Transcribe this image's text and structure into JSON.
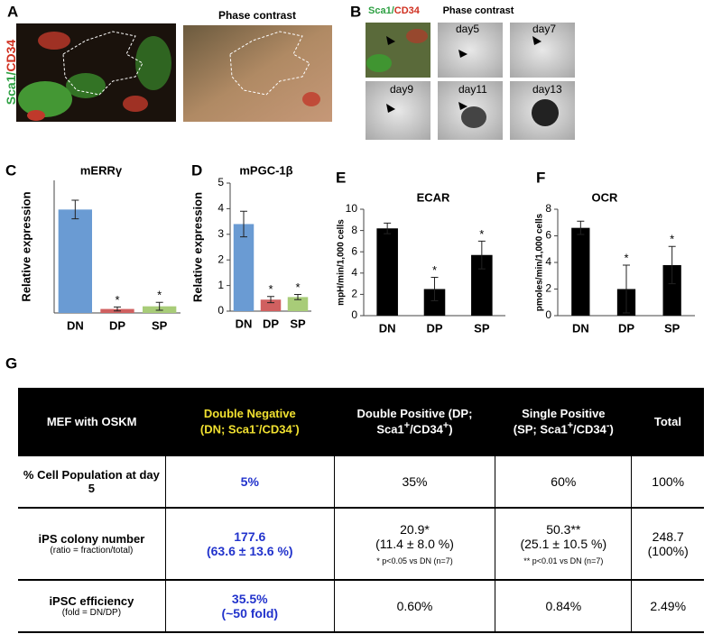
{
  "panel_labels": [
    "A",
    "B",
    "C",
    "D",
    "E",
    "F",
    "G"
  ],
  "panel_a": {
    "stain_label": [
      "Sca1/",
      "CD34"
    ],
    "phase_label": "Phase contrast"
  },
  "panel_b": {
    "stain_label": [
      "Sca1/",
      "CD34"
    ],
    "phase_label": "Phase contrast",
    "days": [
      "day5",
      "day7",
      "day9",
      "day11",
      "day13"
    ]
  },
  "chart_data": [
    {
      "type": "bar",
      "title": "mERRγ",
      "y_label": "Relative expression",
      "categories": [
        "DN",
        "DP",
        "SP"
      ],
      "values": [
        0.78,
        0.03,
        0.05
      ],
      "errors": [
        0.07,
        0.015,
        0.03
      ],
      "colors": [
        "#6a9bd3",
        "#d06060",
        "#a8cc78"
      ],
      "significance": [
        null,
        "*",
        "*"
      ],
      "ylim": [
        0,
        1
      ]
    },
    {
      "type": "bar",
      "title": "mPGC-1β",
      "y_label": "Relative expression",
      "categories": [
        "DN",
        "DP",
        "SP"
      ],
      "values": [
        3.4,
        0.45,
        0.55
      ],
      "errors": [
        0.5,
        0.12,
        0.1
      ],
      "colors": [
        "#6a9bd3",
        "#d06060",
        "#a8cc78"
      ],
      "significance": [
        null,
        "*",
        "*"
      ],
      "ylim": [
        0,
        5
      ],
      "yticks": [
        0,
        1,
        2,
        3,
        4,
        5
      ]
    },
    {
      "type": "bar",
      "title": "ECAR",
      "y_label": "mpH/min/1,000 cells",
      "categories": [
        "DN",
        "DP",
        "SP"
      ],
      "values": [
        8.2,
        2.5,
        5.7
      ],
      "errors": [
        0.5,
        1.1,
        1.3
      ],
      "colors": [
        "#000000",
        "#000000",
        "#000000"
      ],
      "significance": [
        null,
        "*",
        "*"
      ],
      "ylim": [
        0,
        10
      ],
      "yticks": [
        0,
        2,
        4,
        6,
        8,
        10
      ]
    },
    {
      "type": "bar",
      "title": "OCR",
      "y_label": "pmoles/min/1,000 cells",
      "categories": [
        "DN",
        "DP",
        "SP"
      ],
      "values": [
        6.6,
        2.0,
        3.8
      ],
      "errors": [
        0.5,
        1.8,
        1.4
      ],
      "colors": [
        "#000000",
        "#000000",
        "#000000"
      ],
      "significance": [
        null,
        "*",
        "*"
      ],
      "ylim": [
        0,
        8
      ],
      "yticks": [
        0,
        2,
        4,
        6,
        8
      ]
    }
  ],
  "table": {
    "header": [
      [
        [
          "MEF with OSKM"
        ]
      ],
      [
        [
          "Double Negative"
        ],
        [
          "(DN; Sca1",
          "-",
          "/CD34",
          "-",
          ")"
        ]
      ],
      [
        [
          "Double Positive (DP;"
        ],
        [
          "Sca1",
          "+",
          "/CD34",
          "+",
          ")"
        ]
      ],
      [
        [
          "Single Positive"
        ],
        [
          "(SP;  Sca1",
          "+",
          "/CD34",
          "-",
          ")"
        ]
      ],
      [
        [
          "Total"
        ]
      ]
    ],
    "rows": [
      [
        [
          "% Cell Population at day 5"
        ],
        [
          "5%"
        ],
        [
          "35%"
        ],
        [
          "60%"
        ],
        [
          "100%"
        ]
      ],
      [
        [
          "iPS colony number",
          "(ratio = fraction/total)"
        ],
        [
          "177.6",
          "(63.6 ± 13.6 %)"
        ],
        [
          "20.9*",
          "(11.4 ± 8.0 %)",
          "* p<0.05 vs DN (n=7)"
        ],
        [
          "50.3**",
          "(25.1 ± 10.5 %)",
          "** p<0.01 vs DN (n=7)"
        ],
        [
          "248.7",
          "(100%)"
        ]
      ],
      [
        [
          "iPSC efficiency",
          "(fold = DN/DP)"
        ],
        [
          "35.5%",
          "(~50 fold)"
        ],
        [
          "0.60%"
        ],
        [
          "0.84%"
        ],
        [
          "2.49%"
        ]
      ]
    ]
  }
}
